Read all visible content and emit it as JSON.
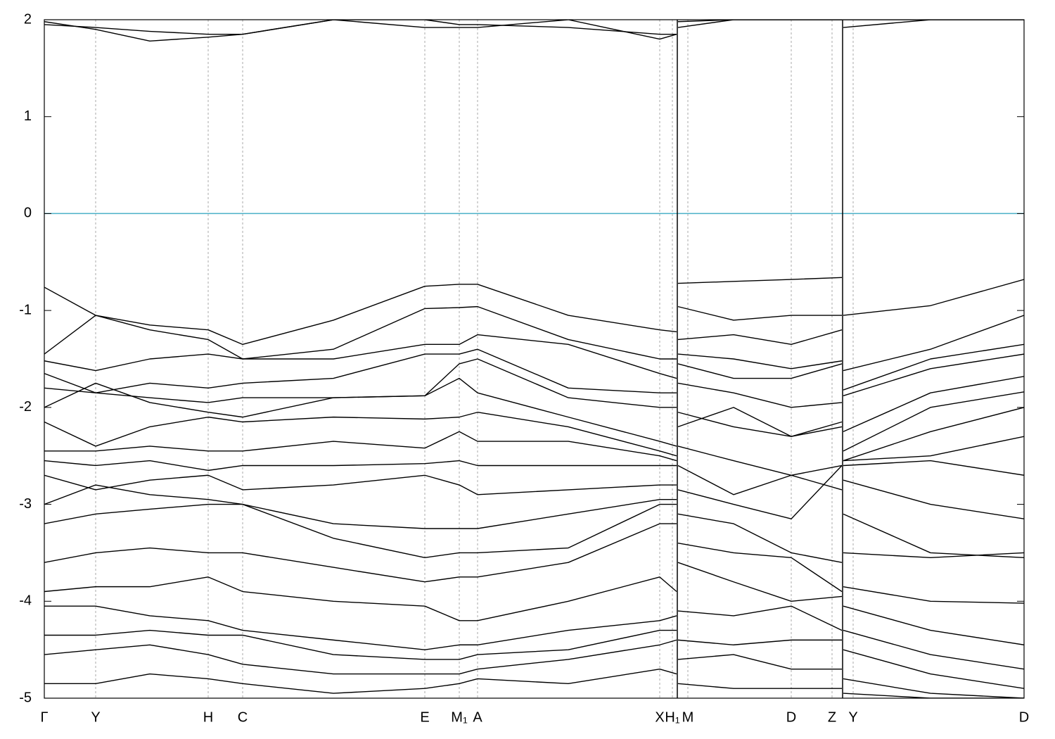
{
  "chart_data": {
    "type": "line",
    "x": [
      0,
      73,
      150,
      233,
      282,
      411,
      541,
      590,
      616,
      745,
      875,
      899,
      900,
      901,
      980,
      1062,
      1134,
      1135,
      1136,
      1260,
      1393
    ],
    "xlim": [
      0,
      1393
    ],
    "xticks": [
      {
        "value": 0,
        "label": "Γ"
      },
      {
        "value": 73,
        "label": "Y"
      },
      {
        "value": 233,
        "label": "H"
      },
      {
        "value": 282,
        "label": "C"
      },
      {
        "value": 541,
        "label": "E"
      },
      {
        "value": 590,
        "label": "M₁"
      },
      {
        "value": 616,
        "label": "A"
      },
      {
        "value": 875,
        "label": "X"
      },
      {
        "value": 893,
        "label": "H₁"
      },
      {
        "value": 915,
        "label": "M"
      },
      {
        "value": 1062,
        "label": "D"
      },
      {
        "value": 1120,
        "label": "Z"
      },
      {
        "value": 1150,
        "label": "Y"
      },
      {
        "value": 1393,
        "label": "D"
      }
    ],
    "ylim": [
      -5,
      2
    ],
    "yticks": [
      -5,
      -4,
      -3,
      -2,
      -1,
      0,
      1,
      2
    ],
    "grid": true,
    "fermi_level": 0,
    "fermi_color": "#4ab0c8",
    "color": "#000000",
    "series": [
      {
        "values": [
          -0.76,
          -1.05,
          -1.15,
          -1.2,
          -1.35,
          -1.1,
          -0.75,
          -0.73,
          -0.73,
          -1.05,
          -1.2,
          -1.22,
          null,
          -0.72,
          -0.7,
          -0.68,
          -0.66,
          null,
          -1.05,
          -0.95,
          -0.68
        ]
      },
      {
        "values": [
          -1.45,
          -1.05,
          -1.2,
          -1.3,
          -1.5,
          -1.4,
          -0.98,
          -0.97,
          -0.96,
          -1.3,
          -1.5,
          -1.5,
          null,
          -0.96,
          -1.1,
          -1.05,
          -1.05,
          null,
          -1.62,
          -1.4,
          -1.05
        ]
      },
      {
        "values": [
          -1.52,
          -1.62,
          -1.5,
          -1.45,
          -1.5,
          -1.5,
          -1.35,
          -1.35,
          -1.25,
          -1.35,
          -1.65,
          -1.7,
          null,
          -1.3,
          -1.25,
          -1.35,
          -1.2,
          null,
          -1.82,
          -1.5,
          -1.35
        ]
      },
      {
        "values": [
          -1.65,
          -1.85,
          -1.75,
          -1.8,
          -1.75,
          -1.7,
          -1.45,
          -1.45,
          -1.4,
          -1.8,
          -1.85,
          -1.85,
          null,
          -1.45,
          -1.5,
          -1.6,
          -1.52,
          null,
          -1.88,
          -1.6,
          -1.45
        ]
      },
      {
        "values": [
          -1.8,
          -1.85,
          -1.9,
          -1.95,
          -1.9,
          -1.9,
          -1.88,
          -1.55,
          -1.5,
          -1.9,
          -2.0,
          -2.0,
          null,
          -1.55,
          -1.7,
          -1.7,
          -1.55,
          null,
          -2.25,
          -1.85,
          -1.68
        ]
      },
      {
        "values": [
          -2.0,
          -1.75,
          -1.95,
          -2.05,
          -2.1,
          -1.9,
          -1.88,
          -1.7,
          -1.85,
          -2.1,
          -2.35,
          -2.4,
          null,
          -1.75,
          -1.85,
          -2.0,
          -1.95,
          null,
          -2.45,
          -2.0,
          -1.84
        ]
      },
      {
        "values": [
          -2.15,
          -2.4,
          -2.2,
          -2.1,
          -2.15,
          -2.1,
          -2.12,
          -2.1,
          -2.05,
          -2.2,
          -2.45,
          -2.5,
          null,
          -2.05,
          -2.2,
          -2.3,
          -2.15,
          null,
          -2.55,
          -2.25,
          -2.0
        ]
      },
      {
        "values": [
          -2.45,
          -2.45,
          -2.4,
          -2.45,
          -2.45,
          -2.35,
          -2.42,
          -2.25,
          -2.35,
          -2.35,
          -2.5,
          -2.55,
          null,
          -2.2,
          -2.0,
          -2.3,
          -2.2,
          null,
          -2.55,
          -2.5,
          -2.3
        ]
      },
      {
        "values": [
          -2.55,
          -2.6,
          -2.55,
          -2.65,
          -2.6,
          -2.6,
          -2.58,
          -2.55,
          -2.6,
          -2.6,
          -2.6,
          -2.6,
          null,
          -2.4,
          -2.55,
          -2.7,
          -2.6,
          null,
          -2.6,
          -2.55,
          -2.7
        ]
      },
      {
        "values": [
          -2.7,
          -2.85,
          -2.75,
          -2.7,
          -2.85,
          -2.8,
          -2.7,
          -2.8,
          -2.9,
          -2.85,
          -2.8,
          -2.8,
          null,
          -2.6,
          -2.9,
          -2.7,
          -2.85,
          null,
          -2.75,
          -3.0,
          -3.15
        ]
      },
      {
        "values": [
          -3.0,
          -2.8,
          -2.9,
          -2.95,
          -3.0,
          -3.2,
          -3.25,
          -3.25,
          -3.25,
          -3.1,
          -2.95,
          -2.95,
          null,
          -2.85,
          -3.0,
          -3.15,
          -2.6,
          null,
          -3.1,
          -3.5,
          -3.55
        ]
      },
      {
        "values": [
          -3.2,
          -3.1,
          -3.05,
          -3.0,
          -3.0,
          -3.35,
          -3.55,
          -3.5,
          -3.5,
          -3.45,
          -3.0,
          -3.0,
          null,
          -3.1,
          -3.2,
          -3.5,
          -3.6,
          null,
          -3.5,
          -3.55,
          -3.5
        ]
      },
      {
        "values": [
          -3.6,
          -3.5,
          -3.45,
          -3.5,
          -3.5,
          -3.65,
          -3.8,
          -3.75,
          -3.75,
          -3.6,
          -3.2,
          -3.2,
          null,
          -3.4,
          -3.5,
          -3.55,
          -3.9,
          null,
          -3.85,
          -4.0,
          -4.02
        ]
      },
      {
        "values": [
          -3.9,
          -3.85,
          -3.85,
          -3.75,
          -3.9,
          -4.0,
          -4.05,
          -4.2,
          -4.2,
          -4.0,
          -3.75,
          -3.9,
          null,
          -3.6,
          -3.8,
          -4.0,
          -3.95,
          null,
          -4.05,
          -4.3,
          -4.45
        ]
      },
      {
        "values": [
          -4.05,
          -4.05,
          -4.15,
          -4.2,
          -4.3,
          -4.4,
          -4.5,
          -4.45,
          -4.45,
          -4.3,
          -4.2,
          -4.15,
          null,
          -4.1,
          -4.15,
          -4.05,
          -4.3,
          null,
          -4.3,
          -4.55,
          -4.7
        ]
      },
      {
        "values": [
          -4.35,
          -4.35,
          -4.3,
          -4.35,
          -4.35,
          -4.55,
          -4.6,
          -4.6,
          -4.55,
          -4.5,
          -4.3,
          -4.3,
          null,
          -4.4,
          -4.45,
          -4.4,
          -4.4,
          null,
          -4.5,
          -4.75,
          -4.9
        ]
      },
      {
        "values": [
          -4.55,
          -4.5,
          -4.45,
          -4.55,
          -4.65,
          -4.75,
          -4.75,
          -4.75,
          -4.7,
          -4.6,
          -4.45,
          -4.4,
          null,
          -4.6,
          -4.55,
          -4.7,
          -4.7,
          null,
          -4.8,
          -4.95,
          -5.0
        ]
      },
      {
        "values": [
          -4.85,
          -4.85,
          -4.75,
          -4.8,
          -4.85,
          -4.95,
          -4.9,
          -4.85,
          -4.8,
          -4.85,
          -4.7,
          -4.75,
          null,
          -4.85,
          -4.9,
          -4.9,
          -4.9,
          null,
          -4.95,
          -5.0,
          -5.0
        ]
      },
      {
        "values": [
          1.98,
          1.9,
          1.78,
          1.82,
          1.85,
          2.0,
          1.92,
          1.92,
          1.92,
          2.0,
          1.8,
          1.85,
          null,
          1.92,
          2.0,
          2.0,
          2.0,
          null,
          1.92,
          2.0,
          2.0
        ]
      },
      {
        "values": [
          1.95,
          1.92,
          1.88,
          1.85,
          1.85,
          2.0,
          2.0,
          1.95,
          1.95,
          1.92,
          1.85,
          1.85,
          null,
          1.98,
          2.0,
          2.0,
          2.0,
          null,
          2.0,
          2.0,
          2.0
        ]
      }
    ]
  }
}
